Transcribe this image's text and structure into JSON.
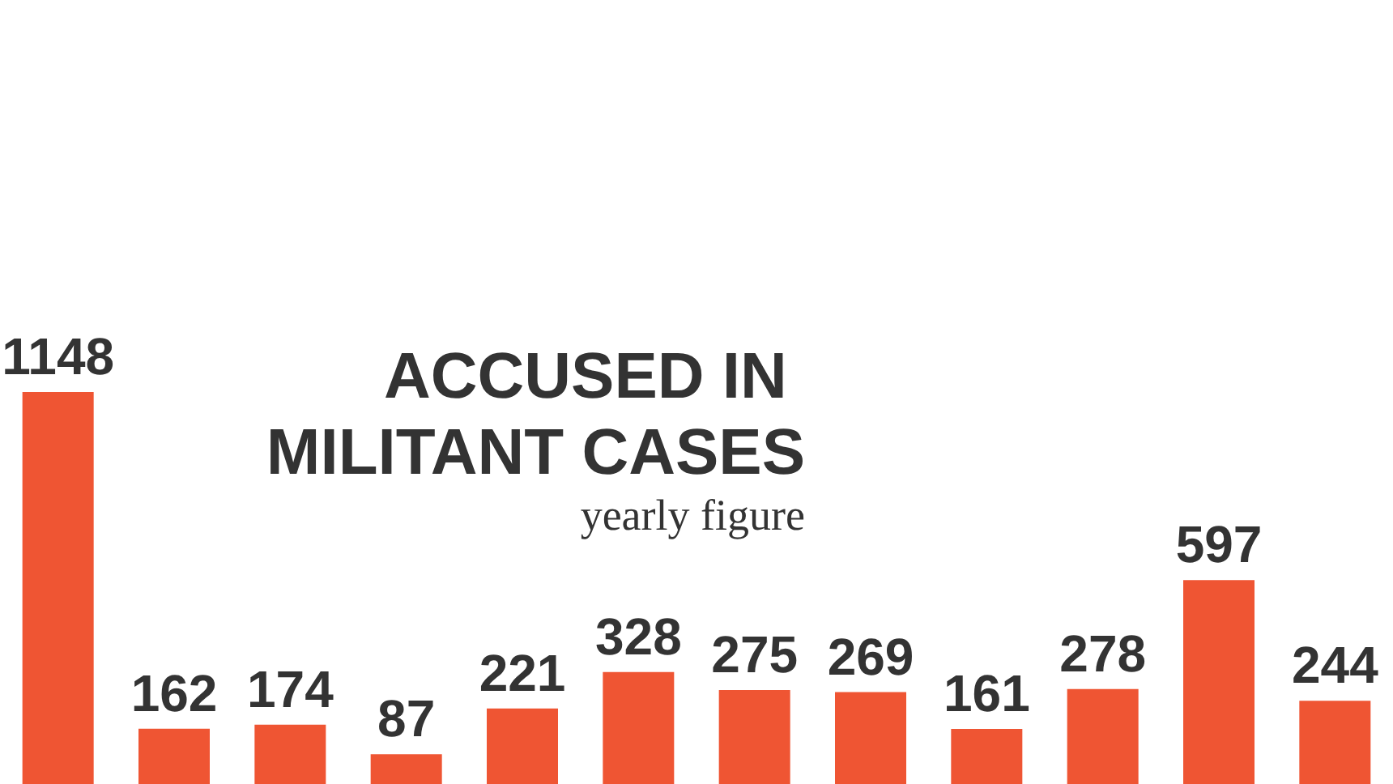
{
  "chart_data": {
    "type": "bar",
    "title": "ACCUSED IN MILITANT CASES",
    "subtitle": "yearly figure",
    "categories": [
      null,
      null,
      null,
      null,
      null,
      null,
      null,
      null,
      null,
      null,
      null,
      null
    ],
    "values": [
      1148,
      162,
      174,
      87,
      221,
      328,
      275,
      269,
      161,
      278,
      597,
      244
    ],
    "color": "#ef5533",
    "data_labels": true,
    "tick_labels": false
  }
}
